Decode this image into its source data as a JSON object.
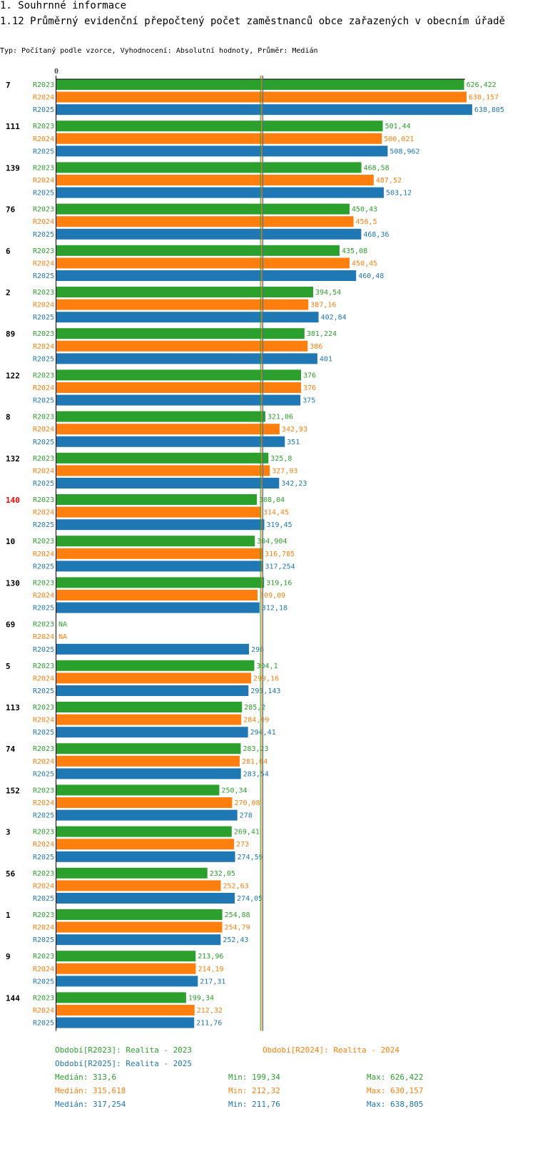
{
  "page": {
    "section_title": "1. Souhrnné informace",
    "chart_title": "1.12 Průměrný evidenční přepočtený počet zaměstnanců obce zařazených v obecním úřadě",
    "subtitle": "Typ: Počítaný podle vzorce, Vyhodnocení: Absolutní hodnoty, Průměr: Medián"
  },
  "colors": {
    "R2023": "#2ca02c",
    "R2024": "#ff7f0e",
    "R2025": "#1f77b4",
    "highlight": "#ff0000"
  },
  "chart_data": {
    "type": "bar",
    "orientation": "horizontal",
    "title": "1.12 Průměrný evidenční přepočtený počet zaměstnanců obce zařazených v obecním úřadě",
    "x_tick_label": "0",
    "xlim": [
      0,
      700
    ],
    "series_names": [
      "R2023",
      "R2024",
      "R2025"
    ],
    "highlight_category": "140",
    "categories": [
      {
        "label": "7",
        "values": [
          626.422,
          630.157,
          638.805
        ],
        "labels": [
          "626,422",
          "630,157",
          "638,805"
        ]
      },
      {
        "label": "111",
        "values": [
          501.44,
          500.021,
          508.962
        ],
        "labels": [
          "501,44",
          "500,021",
          "508,962"
        ]
      },
      {
        "label": "139",
        "values": [
          468.58,
          487.52,
          503.12
        ],
        "labels": [
          "468,58",
          "487,52",
          "503,12"
        ]
      },
      {
        "label": "76",
        "values": [
          450.43,
          456.5,
          468.36
        ],
        "labels": [
          "450,43",
          "456,5",
          "468,36"
        ]
      },
      {
        "label": "6",
        "values": [
          435.08,
          450.45,
          460.48
        ],
        "labels": [
          "435,08",
          "450,45",
          "460,48"
        ]
      },
      {
        "label": "2",
        "values": [
          394.54,
          387.16,
          402.84
        ],
        "labels": [
          "394,54",
          "387,16",
          "402,84"
        ]
      },
      {
        "label": "89",
        "values": [
          381.224,
          386,
          401
        ],
        "labels": [
          "381,224",
          "386",
          "401"
        ]
      },
      {
        "label": "122",
        "values": [
          376,
          376,
          375
        ],
        "labels": [
          "376",
          "376",
          "375"
        ]
      },
      {
        "label": "8",
        "values": [
          321.06,
          342.93,
          351
        ],
        "labels": [
          "321,06",
          "342,93",
          "351"
        ]
      },
      {
        "label": "132",
        "values": [
          325.8,
          327.93,
          342.23
        ],
        "labels": [
          "325,8",
          "327,93",
          "342,23"
        ]
      },
      {
        "label": "140",
        "values": [
          308.04,
          314.45,
          319.45
        ],
        "labels": [
          "308,04",
          "314,45",
          "319,45"
        ]
      },
      {
        "label": "10",
        "values": [
          304.904,
          316.785,
          317.254
        ],
        "labels": [
          "304,904",
          "316,785",
          "317,254"
        ]
      },
      {
        "label": "130",
        "values": [
          319.16,
          309.09,
          312.18
        ],
        "labels": [
          "319,16",
          "309,09",
          "312,18"
        ]
      },
      {
        "label": "69",
        "values": [
          null,
          null,
          296
        ],
        "labels": [
          "NA",
          "NA",
          "296"
        ]
      },
      {
        "label": "5",
        "values": [
          304.1,
          299.16,
          295.143
        ],
        "labels": [
          "304,1",
          "299,16",
          "295,143"
        ]
      },
      {
        "label": "113",
        "values": [
          285.2,
          284.09,
          294.41
        ],
        "labels": [
          "285,2",
          "284,09",
          "294,41"
        ]
      },
      {
        "label": "74",
        "values": [
          283.23,
          281.64,
          283.54
        ],
        "labels": [
          "283,23",
          "281,64",
          "283,54"
        ]
      },
      {
        "label": "152",
        "values": [
          250.34,
          270.08,
          278
        ],
        "labels": [
          "250,34",
          "270,08",
          "278"
        ]
      },
      {
        "label": "3",
        "values": [
          269.41,
          273,
          274.59
        ],
        "labels": [
          "269,41",
          "273",
          "274,59"
        ]
      },
      {
        "label": "56",
        "values": [
          232.05,
          252.63,
          274.05
        ],
        "labels": [
          "232,05",
          "252,63",
          "274,05"
        ]
      },
      {
        "label": "1",
        "values": [
          254.88,
          254.79,
          252.43
        ],
        "labels": [
          "254,88",
          "254,79",
          "252,43"
        ]
      },
      {
        "label": "9",
        "values": [
          213.96,
          214.19,
          217.31
        ],
        "labels": [
          "213,96",
          "214,19",
          "217,31"
        ]
      },
      {
        "label": "144",
        "values": [
          199.34,
          212.32,
          211.76
        ],
        "labels": [
          "199,34",
          "212,32",
          "211,76"
        ]
      }
    ],
    "medians": [
      313.6,
      315.618,
      317.254
    ]
  },
  "legend": {
    "r2023": "Období[R2023]: Realita - 2023",
    "r2024": "Období[R2024]: Realita - 2024",
    "r2025": "Období[R2025]: Realita - 2025"
  },
  "stats": [
    {
      "median": "Medián: 313,6",
      "min": "Min: 199,34",
      "max": "Max: 626,422"
    },
    {
      "median": "Medián: 315,618",
      "min": "Min: 212,32",
      "max": "Max: 630,157"
    },
    {
      "median": "Medián: 317,254",
      "min": "Min: 211,76",
      "max": "Max: 638,805"
    }
  ]
}
